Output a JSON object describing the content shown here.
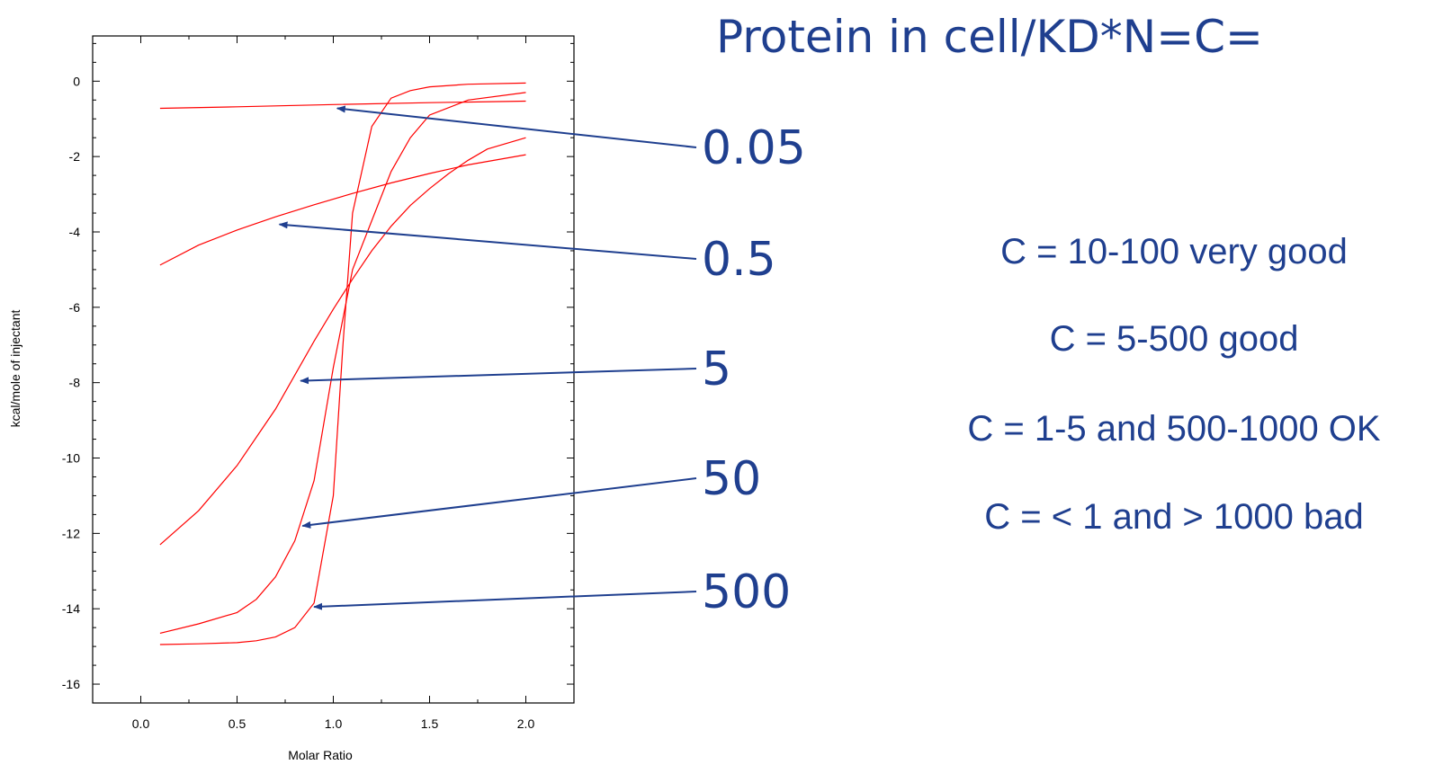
{
  "heading": "Protein in cell/KD*N=C=",
  "guidelines": [
    "C = 10-100 very good",
    "C = 5-500 good",
    "C = 1-5 and 500-1000 OK",
    "C = < 1 and > 1000 bad"
  ],
  "colors": {
    "curve": "#ff0000",
    "annotation": "#1f3f8f",
    "axis": "#000000"
  },
  "chart_data": {
    "type": "line",
    "xlabel": "Molar Ratio",
    "ylabel": "kcal/mole of injectant",
    "xlim": [
      -0.25,
      2.25
    ],
    "ylim": [
      -16.5,
      1.2
    ],
    "xticks": [
      0.0,
      0.5,
      1.0,
      1.5,
      2.0
    ],
    "xtick_labels": [
      "0.0",
      "0.5",
      "1.0",
      "1.5",
      "2.0"
    ],
    "yticks": [
      0,
      -2,
      -4,
      -6,
      -8,
      -10,
      -12,
      -14,
      -16
    ],
    "ytick_labels": [
      "0",
      "-2",
      "-4",
      "-6",
      "-8",
      "-10",
      "-12",
      "-14",
      "-16"
    ],
    "grid": false,
    "series": [
      {
        "label": "0.05",
        "x": [
          0.1,
          0.5,
          1.0,
          1.5,
          2.0
        ],
        "y": [
          -0.72,
          -0.68,
          -0.62,
          -0.57,
          -0.53
        ]
      },
      {
        "label": "0.5",
        "x": [
          0.1,
          0.3,
          0.5,
          0.7,
          0.9,
          1.1,
          1.3,
          1.5,
          1.7,
          2.0
        ],
        "y": [
          -4.88,
          -4.35,
          -3.95,
          -3.6,
          -3.28,
          -2.98,
          -2.7,
          -2.45,
          -2.22,
          -1.95
        ]
      },
      {
        "label": "5",
        "x": [
          0.1,
          0.3,
          0.5,
          0.7,
          0.8,
          0.9,
          1.0,
          1.1,
          1.2,
          1.3,
          1.4,
          1.5,
          1.6,
          1.7,
          1.8,
          2.0
        ],
        "y": [
          -12.3,
          -11.4,
          -10.2,
          -8.7,
          -7.8,
          -6.9,
          -6.05,
          -5.25,
          -4.5,
          -3.85,
          -3.3,
          -2.85,
          -2.45,
          -2.1,
          -1.8,
          -1.5
        ]
      },
      {
        "label": "50",
        "x": [
          0.1,
          0.3,
          0.5,
          0.6,
          0.7,
          0.8,
          0.9,
          1.0,
          1.1,
          1.2,
          1.3,
          1.4,
          1.5,
          1.7,
          2.0
        ],
        "y": [
          -14.65,
          -14.4,
          -14.1,
          -13.75,
          -13.15,
          -12.2,
          -10.6,
          -7.6,
          -5.0,
          -3.7,
          -2.4,
          -1.5,
          -0.9,
          -0.5,
          -0.3
        ]
      },
      {
        "label": "500",
        "x": [
          0.1,
          0.3,
          0.5,
          0.6,
          0.7,
          0.8,
          0.9,
          1.0,
          1.05,
          1.1,
          1.2,
          1.3,
          1.4,
          1.5,
          1.7,
          2.0
        ],
        "y": [
          -14.95,
          -14.93,
          -14.9,
          -14.85,
          -14.75,
          -14.5,
          -13.85,
          -11.0,
          -7.0,
          -3.5,
          -1.2,
          -0.45,
          -0.25,
          -0.15,
          -0.08,
          -0.05
        ]
      }
    ],
    "annotations": [
      {
        "text": "0.05",
        "target": [
          1.02,
          -0.72
        ]
      },
      {
        "text": "0.5",
        "target": [
          0.72,
          -3.8
        ]
      },
      {
        "text": "5",
        "target": [
          0.83,
          -7.95
        ]
      },
      {
        "text": "50",
        "target": [
          0.84,
          -11.8
        ]
      },
      {
        "text": "500",
        "target": [
          0.9,
          -13.95
        ]
      }
    ]
  }
}
